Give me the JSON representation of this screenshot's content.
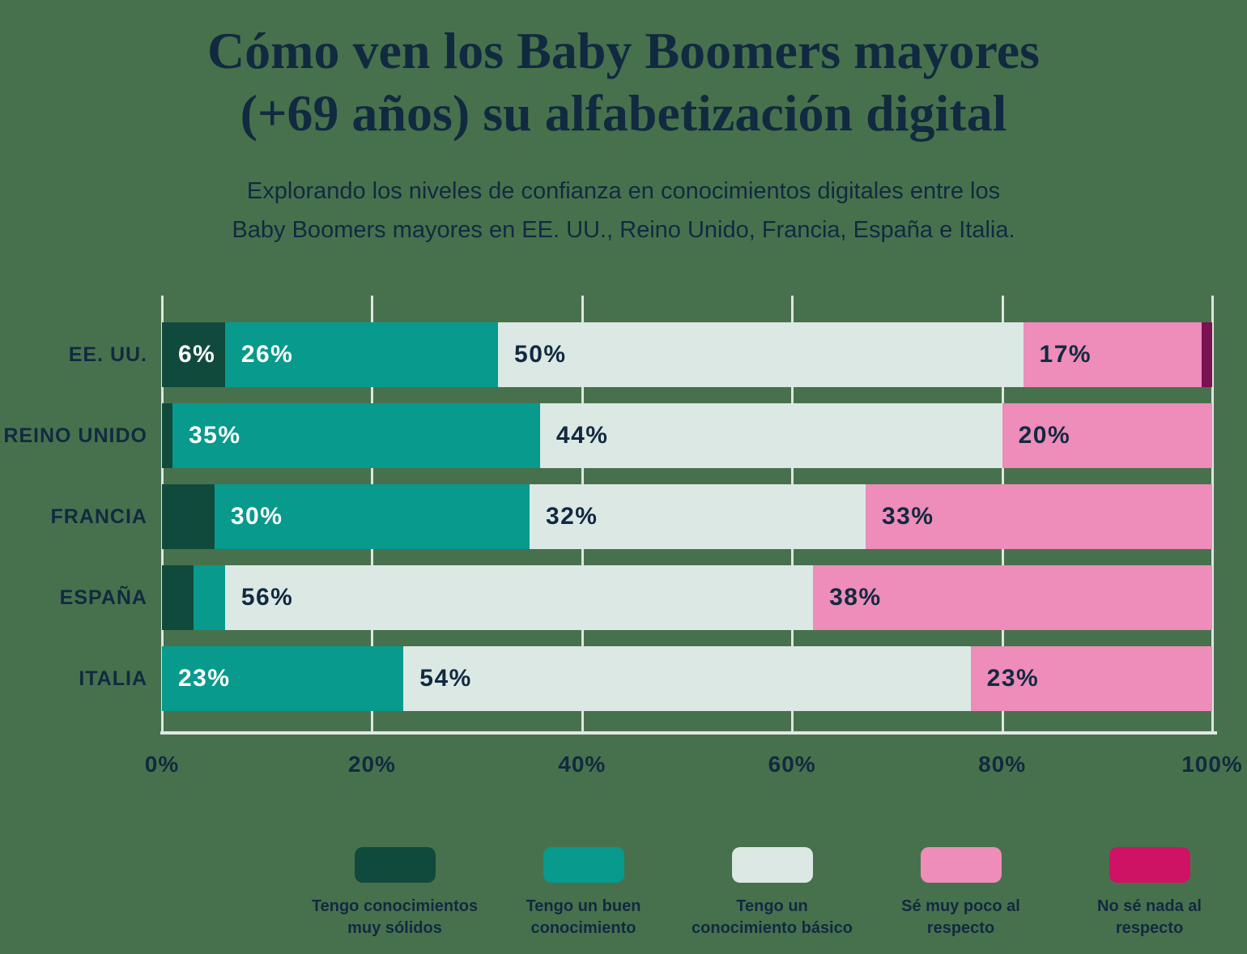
{
  "page": {
    "background_color": "#47714d",
    "text_color": "#112a40",
    "grid_color": "#dfe4e0"
  },
  "header": {
    "title_lines": [
      "Cómo ven los Baby Boomers mayores",
      "(+69 años) su alfabetización digital"
    ],
    "subtitle_lines": [
      "Explorando los niveles de confianza en conocimientos digitales entre los",
      "Baby Boomers mayores en EE. UU., Reino Unido, Francia, España e Italia."
    ]
  },
  "chart_data": {
    "type": "bar",
    "variant": "horizontal-stacked",
    "title": "Cómo ven los Baby Boomers mayores (+69 años) su alfabetización digital",
    "subtitle": "Explorando los niveles de confianza en conocimientos digitales entre los Baby Boomers mayores en EE. UU., Reino Unido, Francia, España e Italia.",
    "categories": [
      "EE. UU.",
      "REINO UNIDO",
      "FRANCIA",
      "ESPAÑA",
      "ITALIA"
    ],
    "series": [
      {
        "name": "Tengo conocimientos muy sólidos",
        "legend_lines": [
          "Tengo conocimientos",
          "muy sólidos"
        ],
        "color": "#104a3d",
        "legend_color": "#104a3d",
        "label_color": "#ffffff",
        "values": [
          6,
          1,
          5,
          3,
          0
        ],
        "labels": [
          "6%",
          "",
          "",
          "",
          ""
        ]
      },
      {
        "name": "Tengo un buen conocimiento",
        "legend_lines": [
          "Tengo un buen",
          "conocimiento"
        ],
        "color": "#079a8d",
        "legend_color": "#079a8d",
        "label_color": "#ffffff",
        "values": [
          26,
          35,
          30,
          3,
          23
        ],
        "labels": [
          "26%",
          "35%",
          "30%",
          "",
          "23%"
        ]
      },
      {
        "name": "Tengo un conocimiento básico",
        "legend_lines": [
          "Tengo un",
          "conocimiento básico"
        ],
        "color": "#dce8e4",
        "legend_color": "#dce8e4",
        "label_color": "#112a40",
        "values": [
          50,
          44,
          32,
          56,
          54
        ],
        "labels": [
          "50%",
          "44%",
          "32%",
          "56%",
          "54%"
        ]
      },
      {
        "name": "Sé muy poco al respecto",
        "legend_lines": [
          "Sé muy poco al",
          "respecto"
        ],
        "color": "#ee8cba",
        "legend_color": "#ee8cba",
        "label_color": "#112a40",
        "values": [
          17,
          20,
          33,
          38,
          23
        ],
        "labels": [
          "17%",
          "20%",
          "33%",
          "38%",
          "23%"
        ]
      },
      {
        "name": "No sé nada al respecto",
        "legend_lines": [
          "No sé nada al",
          "respecto"
        ],
        "color": "#7a1153",
        "legend_color": "#ce1264",
        "label_color": "#112a40",
        "values": [
          1,
          0,
          0,
          0,
          0
        ],
        "labels": [
          "",
          "",
          "",
          "",
          ""
        ]
      }
    ],
    "x_axis": {
      "ticks": [
        "0%",
        "20%",
        "40%",
        "60%",
        "80%",
        "100%"
      ],
      "min": 0,
      "max": 100
    },
    "grid": true,
    "legend_position": "bottom"
  }
}
